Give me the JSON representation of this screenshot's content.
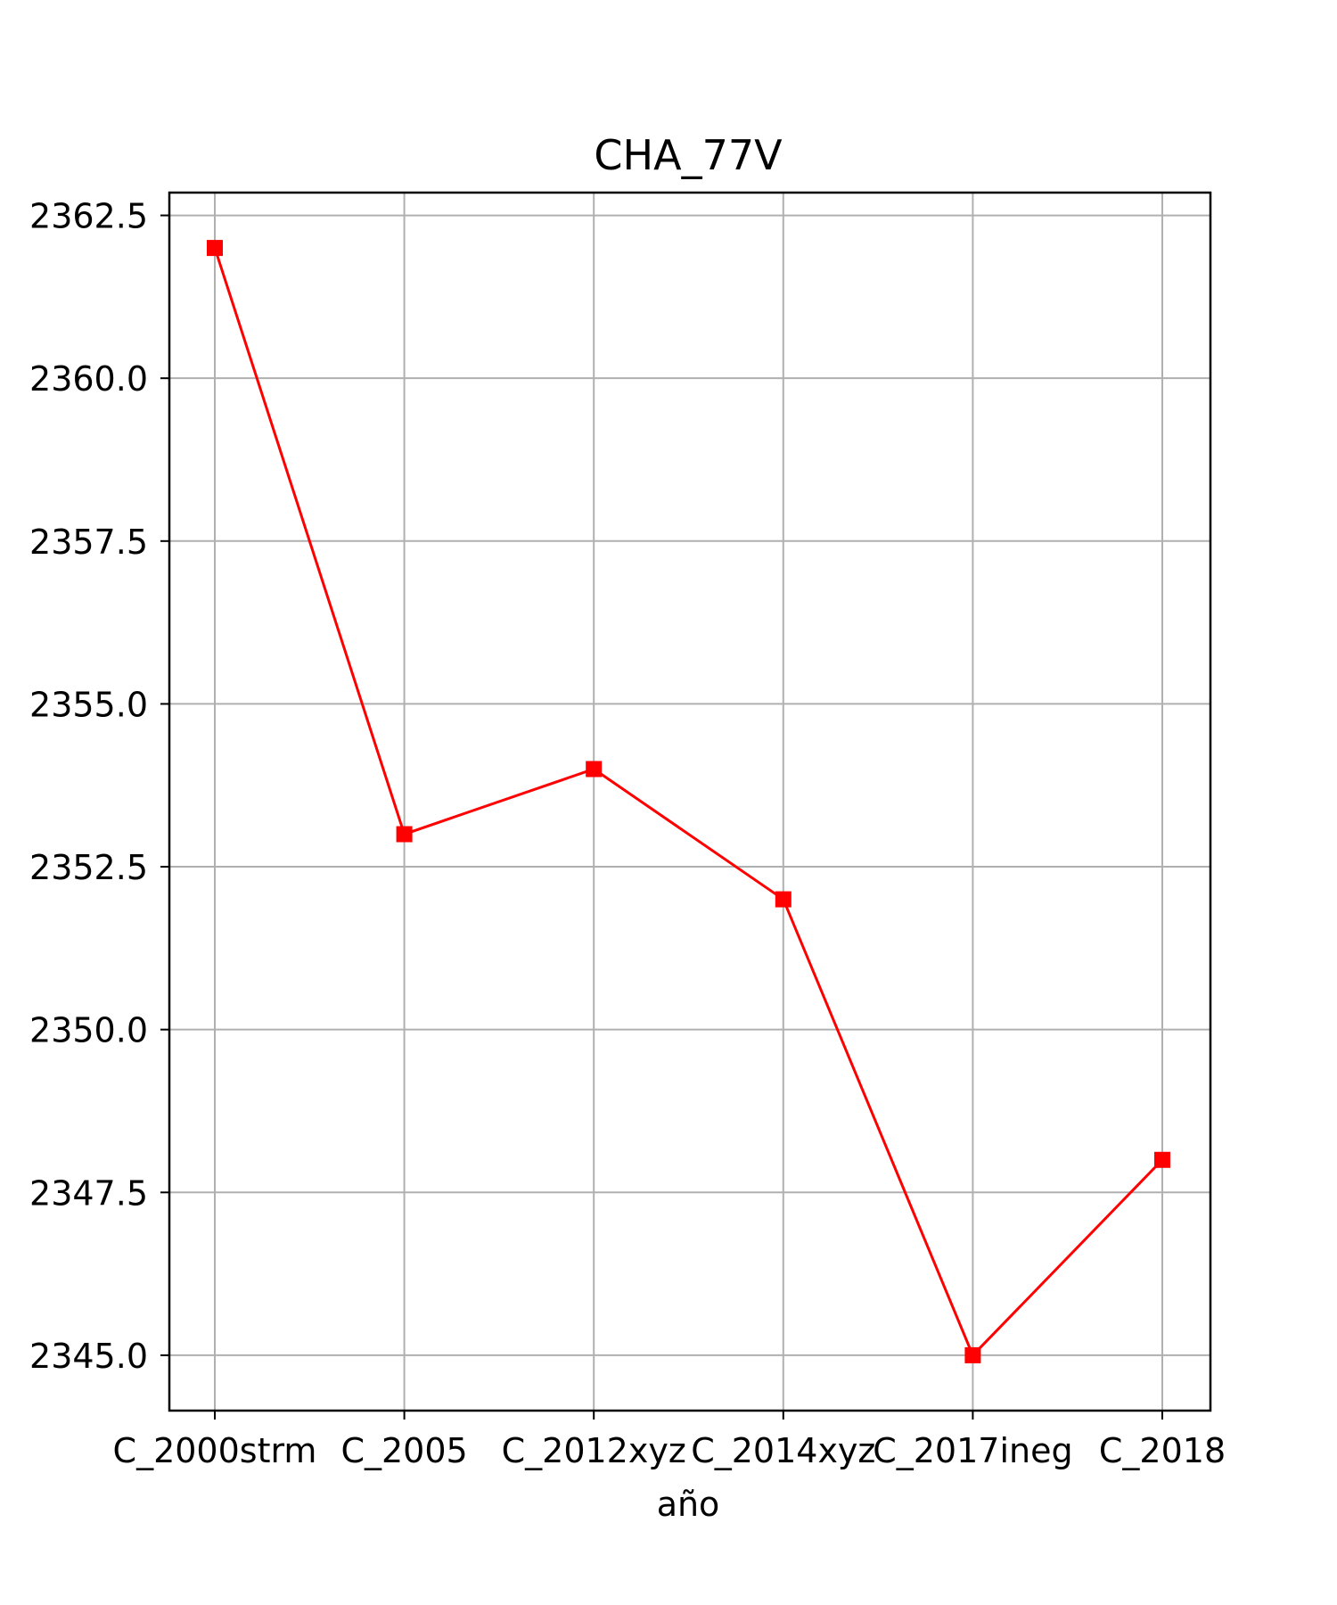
{
  "chart_data": {
    "type": "line",
    "title": "CHA_77V",
    "xlabel": "año",
    "ylabel": "",
    "categories": [
      "C_2000strm",
      "C_2005",
      "C_2012xyz",
      "C_2014xyz",
      "C_2017ineg",
      "C_2018"
    ],
    "series": [
      {
        "values": [
          2362.0,
          2353.0,
          2354.0,
          2352.0,
          2345.0,
          2348.0
        ]
      }
    ],
    "ylim": [
      2344.15,
      2362.85
    ],
    "yticks": [
      2345.0,
      2347.5,
      2350.0,
      2352.5,
      2355.0,
      2357.5,
      2360.0,
      2362.5
    ],
    "ytick_labels": [
      "2345.0",
      "2347.5",
      "2350.0",
      "2352.5",
      "2355.0",
      "2357.5",
      "2360.0",
      "2362.5"
    ],
    "grid": true,
    "line_color": "#ff0000",
    "marker": "square",
    "grid_color": "#b0b0b0"
  }
}
